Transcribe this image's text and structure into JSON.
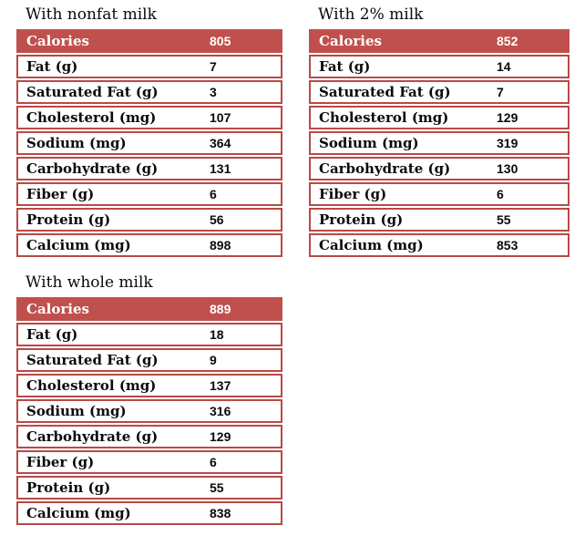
{
  "colors": {
    "accent": "#c0504d",
    "border": "#b84a47",
    "background": "#ffffff"
  },
  "tables": [
    {
      "title": "With nonfat milk",
      "header": {
        "label": "Calories",
        "value": "805"
      },
      "rows": [
        {
          "label": "Fat (g)",
          "value": "7"
        },
        {
          "label": "Saturated Fat (g)",
          "value": "3"
        },
        {
          "label": "Cholesterol (mg)",
          "value": "107"
        },
        {
          "label": "Sodium (mg)",
          "value": "364"
        },
        {
          "label": "Carbohydrate (g)",
          "value": "131"
        },
        {
          "label": "Fiber (g)",
          "value": "6"
        },
        {
          "label": "Protein (g)",
          "value": "56"
        },
        {
          "label": "Calcium (mg)",
          "value": "898"
        }
      ]
    },
    {
      "title": "With 2% milk",
      "header": {
        "label": "Calories",
        "value": "852"
      },
      "rows": [
        {
          "label": "Fat (g)",
          "value": "14"
        },
        {
          "label": "Saturated Fat (g)",
          "value": "7"
        },
        {
          "label": "Cholesterol (mg)",
          "value": "129"
        },
        {
          "label": "Sodium (mg)",
          "value": "319"
        },
        {
          "label": "Carbohydrate (g)",
          "value": "130"
        },
        {
          "label": "Fiber (g)",
          "value": "6"
        },
        {
          "label": "Protein (g)",
          "value": "55"
        },
        {
          "label": "Calcium (mg)",
          "value": "853"
        }
      ]
    },
    {
      "title": "With whole milk",
      "header": {
        "label": "Calories",
        "value": "889"
      },
      "rows": [
        {
          "label": "Fat (g)",
          "value": "18"
        },
        {
          "label": "Saturated Fat (g)",
          "value": "9"
        },
        {
          "label": "Cholesterol (mg)",
          "value": "137"
        },
        {
          "label": "Sodium (mg)",
          "value": "316"
        },
        {
          "label": "Carbohydrate (g)",
          "value": "129"
        },
        {
          "label": "Fiber (g)",
          "value": "6"
        },
        {
          "label": "Protein (g)",
          "value": "55"
        },
        {
          "label": "Calcium (mg)",
          "value": "838"
        }
      ]
    }
  ]
}
